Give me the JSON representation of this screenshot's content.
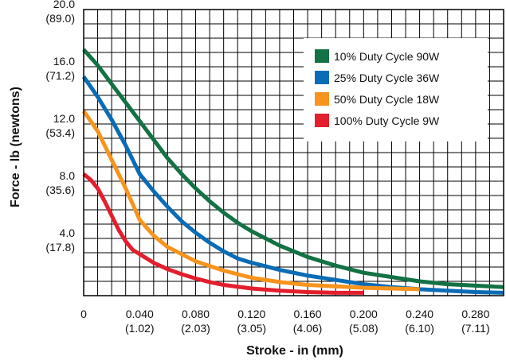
{
  "chart_data": {
    "type": "line",
    "title": "",
    "xlabel": "Stroke - in (mm)",
    "ylabel": "Force - lb (newtons)",
    "xlim": [
      0,
      0.3
    ],
    "ylim": [
      0,
      20
    ],
    "grid": true,
    "legend_position": "top-right",
    "x_ticks": [
      {
        "value": 0,
        "label": "0",
        "sub": ""
      },
      {
        "value": 0.04,
        "label": "0.040",
        "sub": "(1.02)"
      },
      {
        "value": 0.08,
        "label": "0.080",
        "sub": "(2.03)"
      },
      {
        "value": 0.12,
        "label": "0.120",
        "sub": "(3.05)"
      },
      {
        "value": 0.16,
        "label": "0.160",
        "sub": "(4.06)"
      },
      {
        "value": 0.2,
        "label": "0.200",
        "sub": "(5.08)"
      },
      {
        "value": 0.24,
        "label": "0.240",
        "sub": "(6.10)"
      },
      {
        "value": 0.28,
        "label": "0.280",
        "sub": "(7.11)"
      }
    ],
    "y_ticks": [
      {
        "value": 20,
        "label": "20.0",
        "sub": "(89.0)"
      },
      {
        "value": 16,
        "label": "16.0",
        "sub": "(71.2)"
      },
      {
        "value": 12,
        "label": "12.0",
        "sub": "(53.4)"
      },
      {
        "value": 8,
        "label": "8.0",
        "sub": "(35.6)"
      },
      {
        "value": 4,
        "label": "4.0",
        "sub": "(17.8)"
      }
    ],
    "series": [
      {
        "name": "10% Duty Cycle 90W",
        "color": "#127244",
        "x": [
          0,
          0.01,
          0.02,
          0.03,
          0.04,
          0.05,
          0.06,
          0.07,
          0.08,
          0.09,
          0.1,
          0.11,
          0.12,
          0.13,
          0.14,
          0.15,
          0.16,
          0.18,
          0.2,
          0.22,
          0.24,
          0.26,
          0.28,
          0.3
        ],
        "y": [
          17.2,
          16.1,
          14.8,
          13.5,
          12.2,
          10.9,
          9.6,
          8.5,
          7.5,
          6.6,
          5.8,
          5.1,
          4.5,
          4.0,
          3.5,
          3.1,
          2.7,
          2.1,
          1.6,
          1.3,
          1.0,
          0.8,
          0.7,
          0.6
        ]
      },
      {
        "name": "25% Duty Cycle 36W",
        "color": "#0a6cb5",
        "x": [
          0,
          0.01,
          0.02,
          0.03,
          0.04,
          0.05,
          0.06,
          0.07,
          0.08,
          0.09,
          0.1,
          0.11,
          0.12,
          0.14,
          0.16,
          0.18,
          0.2,
          0.22,
          0.24,
          0.26,
          0.28,
          0.3
        ],
        "y": [
          15.3,
          13.9,
          12.3,
          10.5,
          8.5,
          7.3,
          6.2,
          5.2,
          4.4,
          3.7,
          3.1,
          2.6,
          2.3,
          1.8,
          1.4,
          1.1,
          0.8,
          0.6,
          0.45,
          0.35,
          0.25,
          0.2
        ]
      },
      {
        "name": "50% Duty Cycle 18W",
        "color": "#f7941d",
        "x": [
          0,
          0.01,
          0.02,
          0.03,
          0.04,
          0.05,
          0.06,
          0.07,
          0.08,
          0.1,
          0.12,
          0.14,
          0.16,
          0.18,
          0.2,
          0.22,
          0.24
        ],
        "y": [
          12.9,
          11.5,
          9.5,
          7.5,
          5.3,
          4.2,
          3.4,
          2.9,
          2.4,
          1.75,
          1.25,
          0.95,
          0.75,
          0.65,
          0.55,
          0.5,
          0.45
        ]
      },
      {
        "name": "100% Duty Cycle 9W",
        "color": "#e31e2d",
        "x": [
          0,
          0.005,
          0.01,
          0.015,
          0.02,
          0.025,
          0.03,
          0.035,
          0.04,
          0.05,
          0.06,
          0.07,
          0.08,
          0.09,
          0.1,
          0.12,
          0.14,
          0.16,
          0.18,
          0.2
        ],
        "y": [
          8.5,
          8.1,
          7.5,
          6.6,
          5.6,
          4.6,
          3.8,
          3.2,
          2.9,
          2.3,
          1.85,
          1.5,
          1.2,
          0.95,
          0.75,
          0.5,
          0.35,
          0.25,
          0.2,
          0.2
        ]
      }
    ]
  }
}
